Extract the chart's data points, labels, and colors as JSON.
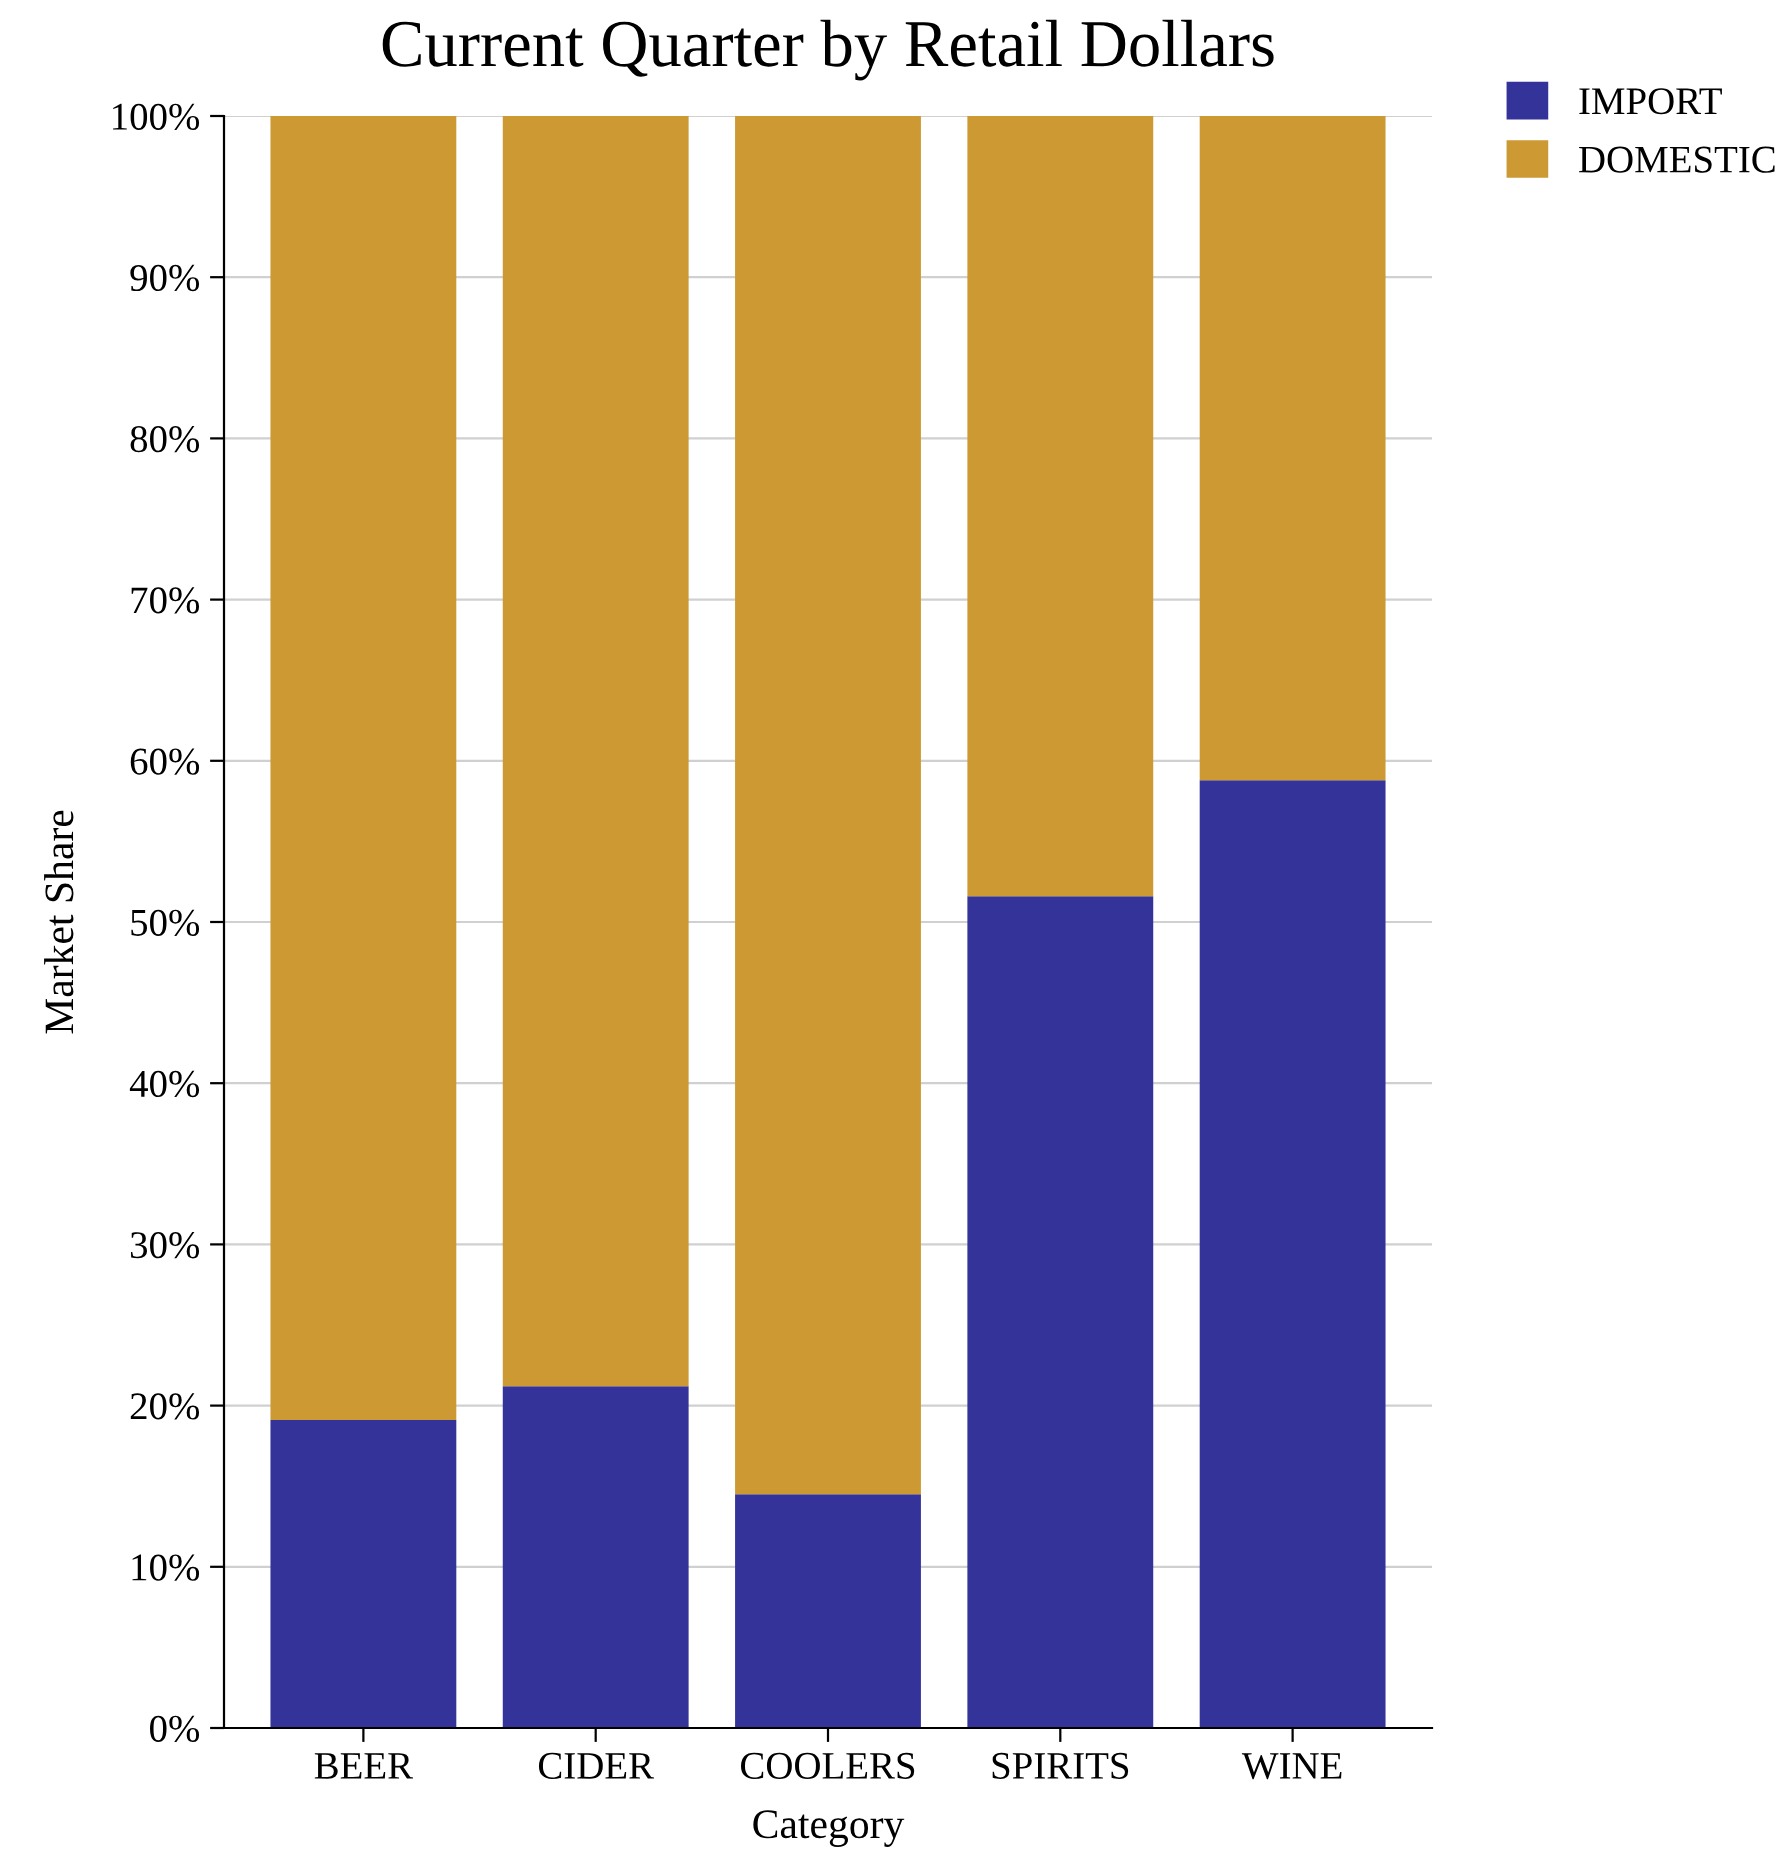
{
  "chart_data": {
    "type": "bar",
    "title": "Current Quarter by Retail Dollars",
    "xlabel": "Category",
    "ylabel": "Market Share",
    "categories": [
      "BEER",
      "CIDER",
      "COOLERS",
      "SPIRITS",
      "WINE"
    ],
    "stacked": true,
    "series": [
      {
        "name": "IMPORT",
        "color": "#333399",
        "values": [
          19.1,
          21.2,
          14.5,
          51.6,
          58.8
        ]
      },
      {
        "name": "DOMESTIC",
        "color": "#cc9933",
        "values": [
          80.9,
          78.8,
          85.5,
          48.4,
          41.2
        ]
      }
    ],
    "ylim": [
      0,
      100
    ],
    "yticks": [
      {
        "value": 0,
        "label": "0%"
      },
      {
        "value": 10,
        "label": "10%"
      },
      {
        "value": 20,
        "label": "20%"
      },
      {
        "value": 30,
        "label": "30%"
      },
      {
        "value": 40,
        "label": "40%"
      },
      {
        "value": 50,
        "label": "50%"
      },
      {
        "value": 60,
        "label": "60%"
      },
      {
        "value": 70,
        "label": "70%"
      },
      {
        "value": 80,
        "label": "80%"
      },
      {
        "value": 90,
        "label": "90%"
      },
      {
        "value": 100,
        "label": "100%"
      }
    ],
    "grid": "y",
    "legend": "top right"
  }
}
